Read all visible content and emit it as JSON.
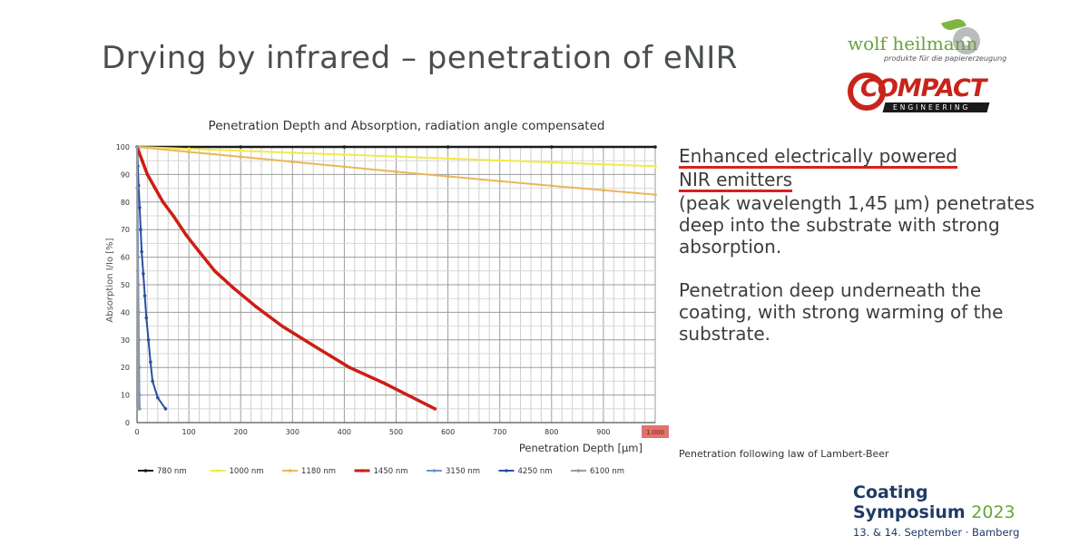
{
  "slide": {
    "title": "Drying by infrared – penetration of eNIR",
    "description_heading_1": "Enhanced electrically powered",
    "description_heading_2": "NIR emitters",
    "description_body": "(peak wavelength 1,45 µm) penetrates deep into the substrate with strong absorption.",
    "description_body_2": "Penetration deep underneath the coating, with strong warming of the substrate.",
    "footnote": "Penetration following law of Lambert-Beer",
    "accent_color": "#d8221b"
  },
  "logos": {
    "wolf_heilmann": "wolf heilmann",
    "wolf_heilmann_tagline": "produkte für die papiererzeugung",
    "compact": "COMPACT",
    "compact_sub": "ENGINEERING"
  },
  "symposium": {
    "line1": "Coating",
    "line2": "Symposium",
    "year": "2023",
    "date": "13. & 14. September · Bamberg"
  },
  "chart_data": {
    "type": "line",
    "title": "Penetration Depth and Absorption, radiation angle compensated",
    "xlabel": "Penetration Depth [µm]",
    "ylabel": "Absorption I/Io [%]",
    "xlim": [
      0,
      1000
    ],
    "ylim": [
      0,
      100
    ],
    "x_ticks": [
      0,
      100,
      200,
      300,
      400,
      500,
      600,
      700,
      800,
      900
    ],
    "x_tick_highlight": "1.000",
    "y_ticks": [
      0,
      10,
      20,
      30,
      40,
      50,
      60,
      70,
      80,
      90,
      100
    ],
    "grid": true,
    "legend_position": "bottom",
    "series": [
      {
        "name": "780 nm",
        "color": "#1a1a1a",
        "width": 2.5,
        "marker": true,
        "x": [
          0,
          200,
          400,
          600,
          800,
          1000
        ],
        "y": [
          100,
          100,
          100,
          100,
          100,
          100
        ]
      },
      {
        "name": "1000 nm",
        "color": "#f2ea45",
        "width": 2,
        "marker": true,
        "x": [
          0,
          100,
          200,
          300,
          400,
          500,
          600,
          700,
          800,
          900,
          1000
        ],
        "y": [
          100,
          99.3,
          98.6,
          97.9,
          97.2,
          96.5,
          95.8,
          95.1,
          94.4,
          93.7,
          93
        ]
      },
      {
        "name": "1180 nm",
        "color": "#ebb65a",
        "width": 2,
        "marker": true,
        "x": [
          0,
          100,
          200,
          300,
          400,
          500,
          600,
          700,
          800,
          900,
          1000
        ],
        "y": [
          100,
          98.2,
          96.4,
          94.6,
          92.8,
          91,
          89.3,
          87.6,
          85.9,
          84.3,
          82.7
        ]
      },
      {
        "name": "1450 nm",
        "color": "#cc1e14",
        "width": 3.5,
        "marker": true,
        "x": [
          0,
          10,
          20,
          35,
          50,
          70,
          95,
          120,
          150,
          185,
          230,
          280,
          340,
          410,
          480,
          575
        ],
        "y": [
          100,
          95,
          90,
          85,
          80,
          75,
          68,
          62,
          55,
          49,
          42,
          35,
          28,
          20,
          14,
          5
        ]
      },
      {
        "name": "3150 nm",
        "color": "#6f92d4",
        "width": 2,
        "marker": true,
        "x": [
          0,
          0.5,
          1,
          1.5,
          2,
          2.5,
          3,
          3.5,
          4,
          4.5,
          5
        ],
        "y": [
          100,
          90,
          80,
          70,
          60,
          50,
          40,
          30,
          20,
          10,
          5
        ]
      },
      {
        "name": "4250 nm",
        "color": "#2a4f9e",
        "width": 2,
        "marker": true,
        "x": [
          0,
          1.5,
          3,
          5,
          7,
          9,
          12,
          15,
          18,
          22,
          26,
          30,
          40,
          55
        ],
        "y": [
          100,
          93,
          86,
          78,
          70,
          62,
          54,
          46,
          38,
          30,
          22,
          15,
          9,
          5
        ]
      },
      {
        "name": "6100 nm",
        "color": "#9a9a9a",
        "width": 2,
        "marker": true,
        "x": [
          0,
          0.3,
          0.6,
          0.9,
          1.2,
          1.5,
          1.8
        ],
        "y": [
          100,
          85,
          70,
          55,
          40,
          25,
          5
        ]
      }
    ]
  }
}
